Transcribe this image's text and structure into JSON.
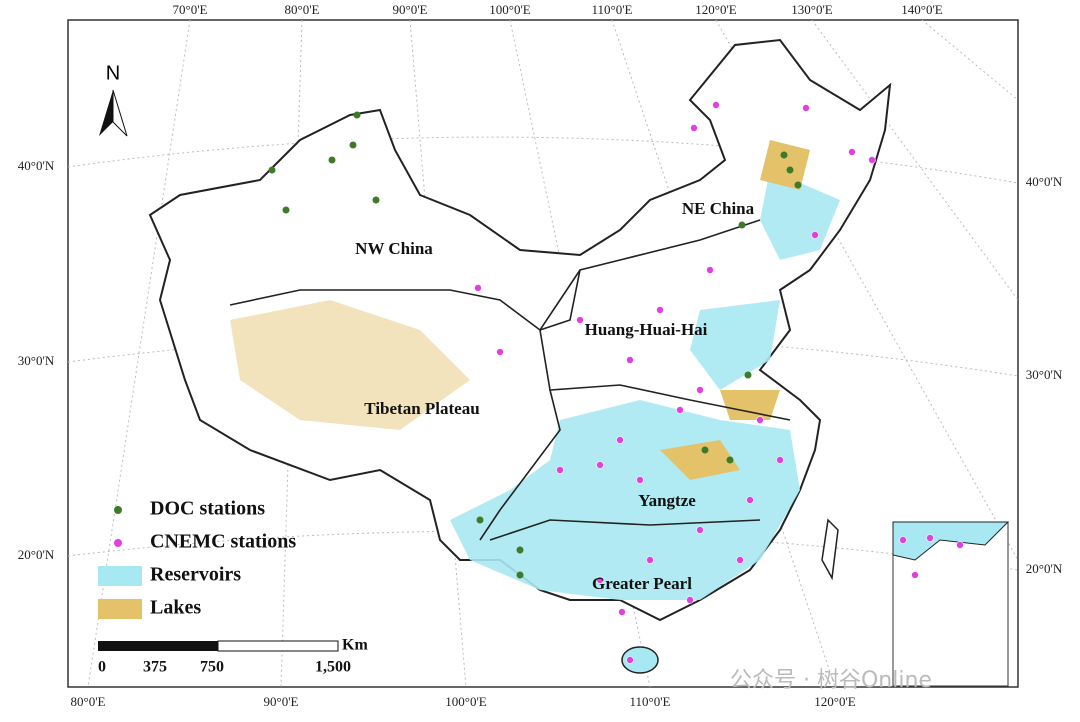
{
  "graticule": {
    "top": [
      "70°0'E",
      "80°0'E",
      "90°0'E",
      "100°0'E",
      "110°0'E",
      "120°0'E",
      "130°0'E",
      "140°0'E"
    ],
    "bottom": [
      "80°0'E",
      "90°0'E",
      "100°0'E",
      "110°0'E",
      "120°0'E"
    ],
    "left": [
      "40°0'N",
      "30°0'N",
      "20°0'N"
    ],
    "right": [
      "40°0'N",
      "30°0'N",
      "20°0'N"
    ]
  },
  "north_arrow": "N",
  "regions": [
    "NW China",
    "NE China",
    "Huang-Huai-Hai",
    "Tibetan Plateau",
    "Yangtze",
    "Greater Pearl"
  ],
  "legend": [
    {
      "label": "DOC stations",
      "color": "#3f7a2a"
    },
    {
      "label": "CNEMC stations",
      "color": "#e040e0"
    },
    {
      "label": "Reservoirs",
      "color": "#a8e8f2"
    },
    {
      "label": "Lakes",
      "color": "#e3c26a"
    }
  ],
  "scale_bar": {
    "unit": "Km",
    "labels": [
      "0",
      "375",
      "750",
      "1,500"
    ]
  },
  "watermark": "公众号 · 树谷Online"
}
